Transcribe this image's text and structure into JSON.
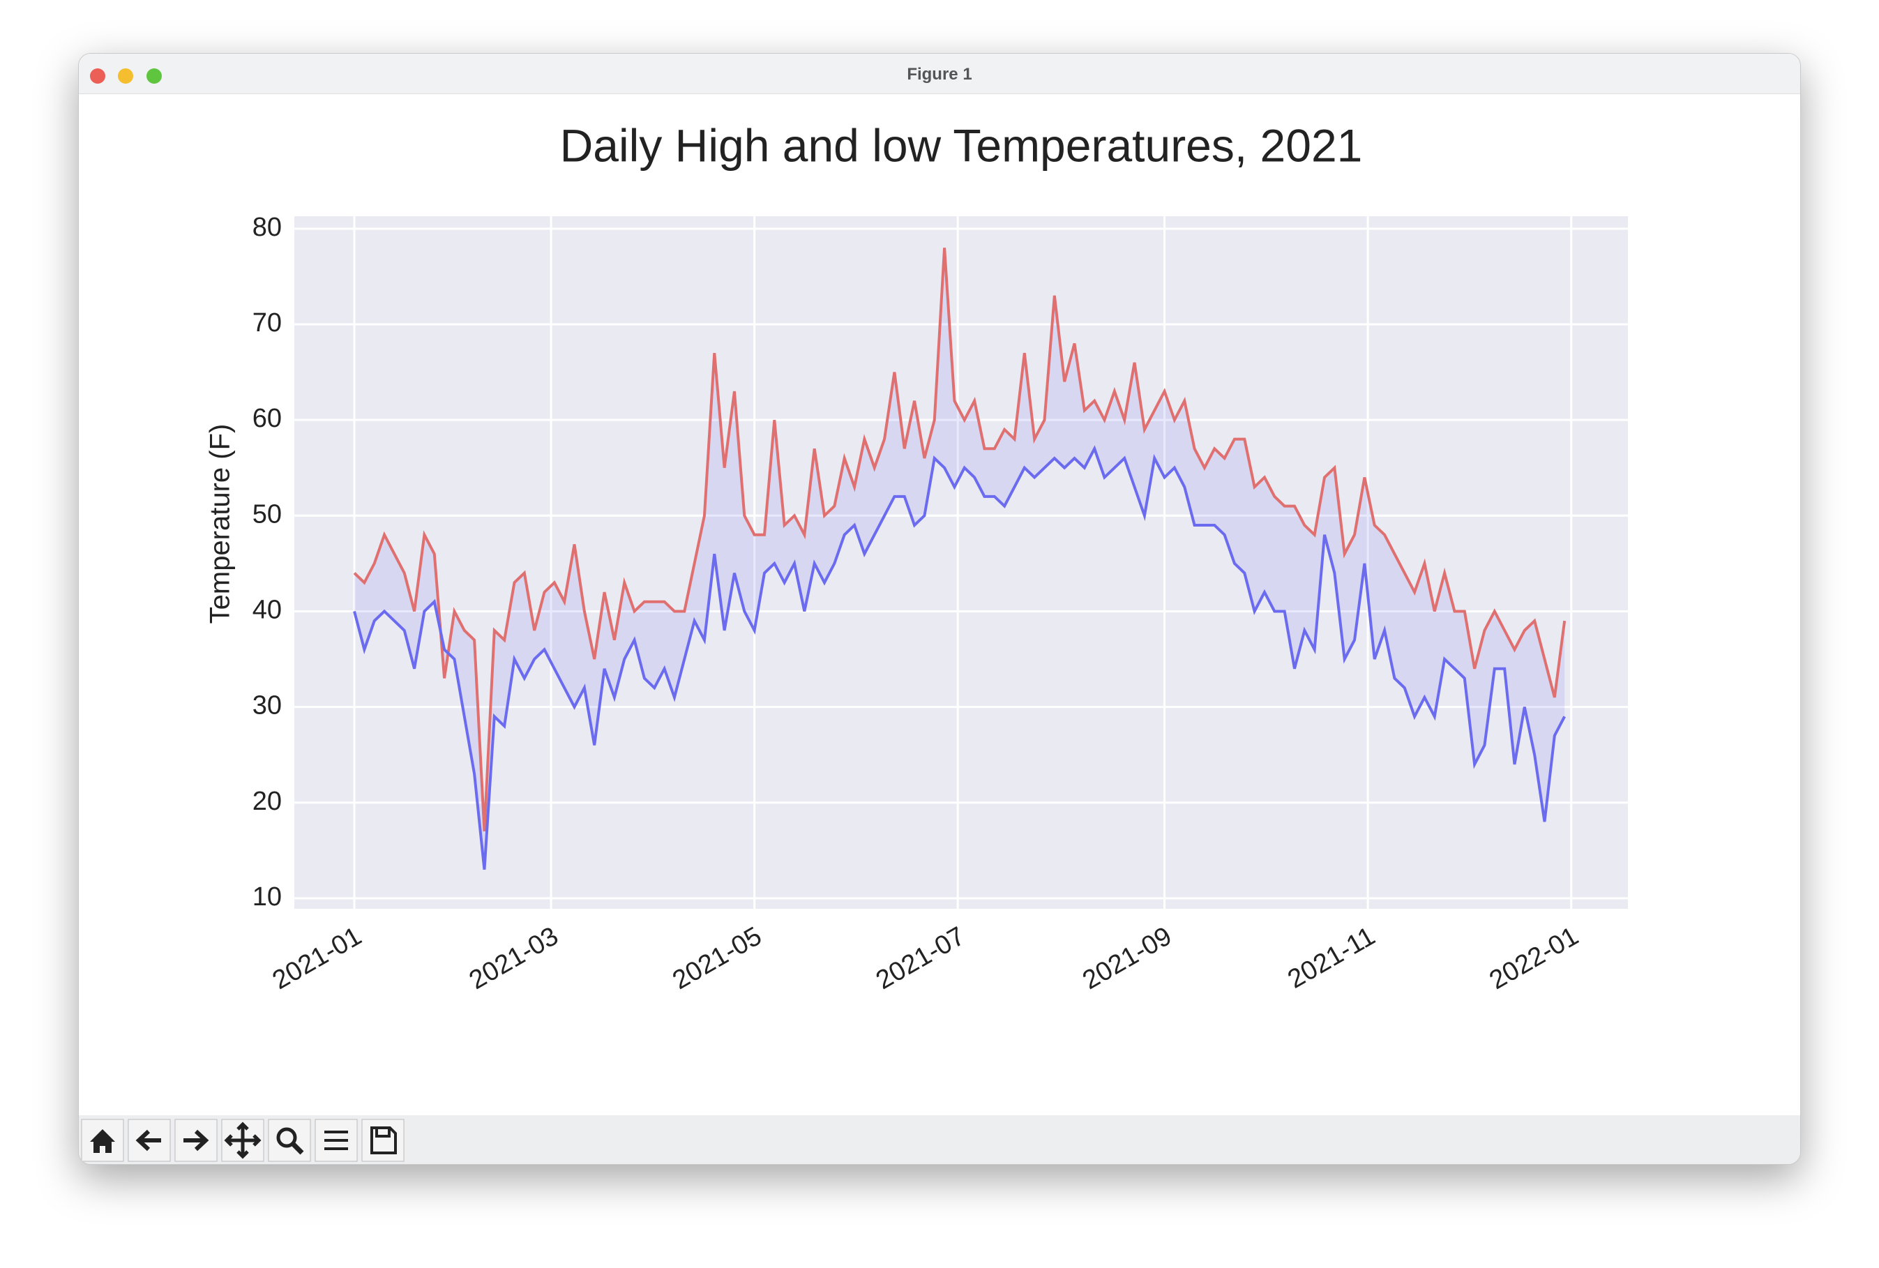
{
  "window": {
    "title": "Figure 1"
  },
  "chart_data": {
    "type": "line",
    "title": "Daily High and low Temperatures, 2021",
    "ylabel": "Temperature (F)",
    "x": [
      0,
      3,
      6,
      9,
      12,
      15,
      18,
      21,
      24,
      27,
      30,
      33,
      36,
      39,
      42,
      45,
      48,
      51,
      54,
      57,
      60,
      63,
      66,
      69,
      72,
      75,
      78,
      81,
      84,
      87,
      90,
      93,
      96,
      99,
      102,
      105,
      108,
      111,
      114,
      117,
      120,
      123,
      126,
      129,
      132,
      135,
      138,
      141,
      144,
      147,
      150,
      153,
      156,
      159,
      162,
      165,
      168,
      171,
      174,
      177,
      180,
      183,
      186,
      189,
      192,
      195,
      198,
      201,
      204,
      207,
      210,
      213,
      216,
      219,
      222,
      225,
      228,
      231,
      234,
      237,
      240,
      243,
      246,
      249,
      252,
      255,
      258,
      261,
      264,
      267,
      270,
      273,
      276,
      279,
      282,
      285,
      288,
      291,
      294,
      297,
      300,
      303,
      306,
      309,
      312,
      315,
      318,
      321,
      324,
      327,
      330,
      333,
      336,
      339,
      342,
      345,
      348,
      351,
      354,
      357,
      360,
      363
    ],
    "series": [
      {
        "color": "#e07070",
        "values": [
          44,
          43,
          45,
          48,
          46,
          44,
          40,
          48,
          46,
          33,
          40,
          38,
          37,
          17,
          38,
          37,
          43,
          44,
          38,
          42,
          43,
          41,
          47,
          40,
          35,
          42,
          37,
          43,
          40,
          41,
          41,
          41,
          40,
          40,
          45,
          50,
          67,
          55,
          63,
          50,
          48,
          48,
          60,
          49,
          50,
          48,
          57,
          50,
          51,
          56,
          53,
          58,
          55,
          58,
          65,
          57,
          62,
          56,
          60,
          78,
          62,
          60,
          62,
          57,
          57,
          59,
          58,
          67,
          58,
          60,
          73,
          64,
          68,
          61,
          62,
          60,
          63,
          60,
          66,
          59,
          61,
          63,
          60,
          62,
          57,
          55,
          57,
          56,
          58,
          58,
          53,
          54,
          52,
          51,
          51,
          49,
          48,
          54,
          55,
          46,
          48,
          54,
          49,
          48,
          46,
          44,
          42,
          45,
          40,
          44,
          40,
          40,
          34,
          38,
          40,
          38,
          36,
          38,
          39,
          35,
          31,
          39
        ]
      },
      {
        "color": "#6b6bef",
        "values": [
          40,
          36,
          39,
          40,
          39,
          38,
          34,
          40,
          41,
          36,
          35,
          29,
          23,
          13,
          29,
          28,
          35,
          33,
          35,
          36,
          34,
          32,
          30,
          32,
          26,
          34,
          31,
          35,
          37,
          33,
          32,
          34,
          31,
          35,
          39,
          37,
          46,
          38,
          44,
          40,
          38,
          44,
          45,
          43,
          45,
          40,
          45,
          43,
          45,
          48,
          49,
          46,
          48,
          50,
          52,
          52,
          49,
          50,
          56,
          55,
          53,
          55,
          54,
          52,
          52,
          51,
          53,
          55,
          54,
          55,
          56,
          55,
          56,
          55,
          57,
          54,
          55,
          56,
          53,
          50,
          56,
          54,
          55,
          53,
          49,
          49,
          49,
          48,
          45,
          44,
          40,
          42,
          40,
          40,
          34,
          38,
          36,
          48,
          44,
          35,
          37,
          45,
          35,
          38,
          33,
          32,
          29,
          31,
          29,
          35,
          34,
          33,
          24,
          26,
          34,
          34,
          24,
          30,
          25,
          18,
          27,
          29
        ]
      }
    ],
    "fill_color": "#6b6bef",
    "fill_alpha": 0.15,
    "xlim": [
      -18,
      382
    ],
    "xticks": [
      {
        "value": 0,
        "label": "2021-01"
      },
      {
        "value": 59,
        "label": "2021-03"
      },
      {
        "value": 120,
        "label": "2021-05"
      },
      {
        "value": 181,
        "label": "2021-07"
      },
      {
        "value": 243,
        "label": "2021-09"
      },
      {
        "value": 304,
        "label": "2021-11"
      },
      {
        "value": 365,
        "label": "2022-01"
      }
    ],
    "ylim": [
      8.9,
      81.3
    ],
    "yticks": [
      10,
      20,
      30,
      40,
      50,
      60,
      70,
      80
    ],
    "grid": true
  }
}
